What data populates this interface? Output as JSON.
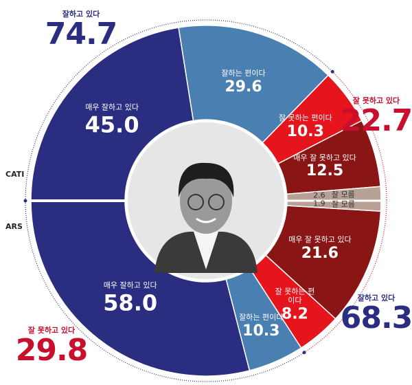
{
  "chart_data": {
    "type": "split-donut",
    "halves": [
      {
        "name": "CATI",
        "side": "top",
        "categories": [
          "매우 잘하고 있다",
          "잘하는 편이다",
          "잘 못하는 편이다",
          "매우 잘 못하고 있다",
          "잘 모름"
        ],
        "values": [
          45.0,
          29.6,
          10.3,
          12.5,
          2.6
        ],
        "value_labels": [
          "45.0",
          "29.6",
          "10.3",
          "12.5",
          "2.6"
        ],
        "colors": [
          "#2b2e80",
          "#4a7fb1",
          "#e5141d",
          "#8a1515",
          "#b9a095"
        ],
        "summaries": [
          {
            "label": "잘하고 있다",
            "value": 74.7,
            "color": "#2b2e80"
          },
          {
            "label": "잘 못하고 있다",
            "value": 22.7,
            "color": "#c8102e"
          }
        ]
      },
      {
        "name": "ARS",
        "side": "bottom",
        "categories": [
          "매우 잘하고 있다",
          "잘하는 편이다",
          "잘 못하는 편이다",
          "매우 잘 못하고 있다",
          "잘 모름"
        ],
        "values": [
          58.0,
          10.3,
          8.2,
          21.6,
          1.9
        ],
        "value_labels": [
          "58.0",
          "10.3",
          "8.2",
          "21.6",
          "1.9"
        ],
        "colors": [
          "#2b2e80",
          "#4a7fb1",
          "#e5141d",
          "#8a1515",
          "#b9a095"
        ],
        "summaries": [
          {
            "label": "잘하고 있다",
            "value": 68.3,
            "color": "#2b2e80"
          },
          {
            "label": "잘 못하고 있다",
            "value": 29.8,
            "color": "#c8102e"
          }
        ]
      }
    ]
  }
}
